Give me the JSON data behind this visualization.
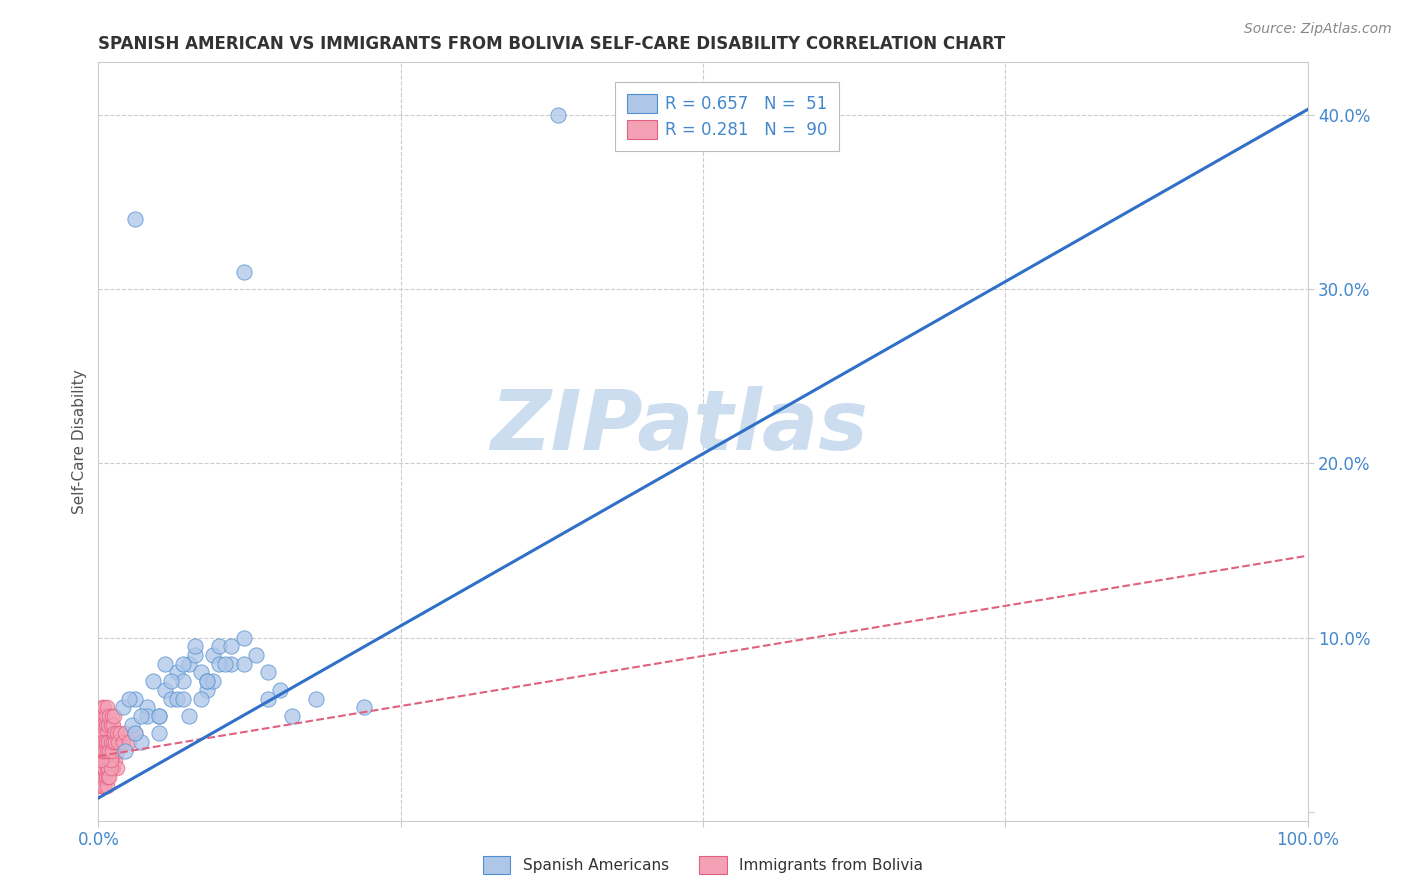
{
  "title": "SPANISH AMERICAN VS IMMIGRANTS FROM BOLIVIA SELF-CARE DISABILITY CORRELATION CHART",
  "source": "Source: ZipAtlas.com",
  "ylabel": "Self-Care Disability",
  "xlim": [
    0,
    1.0
  ],
  "ylim": [
    -0.005,
    0.43
  ],
  "legend_r1": "R = 0.657",
  "legend_n1": "N =  51",
  "legend_r2": "R = 0.281",
  "legend_n2": "N =  90",
  "color_blue": "#aec6e8",
  "color_pink": "#f4a0b5",
  "edge_blue": "#5090d0",
  "edge_pink": "#e06080",
  "line_blue_color": "#3070c8",
  "line_pink_color": "#e06080",
  "watermark": "ZIPatlas",
  "watermark_color": "#ccddf0",
  "background": "#ffffff",
  "grid_color": "#cccccc",
  "tick_color": "#4488cc",
  "title_color": "#333333",
  "source_color": "#888888",
  "ylabel_color": "#555555",
  "blue_slope": 0.395,
  "blue_intercept": 0.008,
  "pink_slope": 0.115,
  "pink_intercept": 0.032,
  "blue_scatter_x": [
    0.022,
    0.028,
    0.035,
    0.04,
    0.05,
    0.055,
    0.06,
    0.065,
    0.07,
    0.075,
    0.08,
    0.085,
    0.09,
    0.095,
    0.1,
    0.11,
    0.12,
    0.13,
    0.14,
    0.15,
    0.02,
    0.03,
    0.04,
    0.05,
    0.06,
    0.07,
    0.08,
    0.09,
    0.1,
    0.11,
    0.025,
    0.035,
    0.045,
    0.055,
    0.065,
    0.075,
    0.085,
    0.095,
    0.105,
    0.03,
    0.05,
    0.07,
    0.09,
    0.12,
    0.14,
    0.16,
    0.18,
    0.22,
    0.03,
    0.12,
    0.38
  ],
  "blue_scatter_y": [
    0.035,
    0.05,
    0.04,
    0.06,
    0.055,
    0.07,
    0.065,
    0.08,
    0.075,
    0.085,
    0.09,
    0.08,
    0.07,
    0.09,
    0.095,
    0.085,
    0.1,
    0.09,
    0.08,
    0.07,
    0.06,
    0.065,
    0.055,
    0.045,
    0.075,
    0.085,
    0.095,
    0.075,
    0.085,
    0.095,
    0.065,
    0.055,
    0.075,
    0.085,
    0.065,
    0.055,
    0.065,
    0.075,
    0.085,
    0.045,
    0.055,
    0.065,
    0.075,
    0.085,
    0.065,
    0.055,
    0.065,
    0.06,
    0.34,
    0.31,
    0.4
  ],
  "pink_scatter_x": [
    0.001,
    0.001,
    0.002,
    0.002,
    0.003,
    0.003,
    0.003,
    0.004,
    0.004,
    0.005,
    0.005,
    0.005,
    0.006,
    0.006,
    0.007,
    0.007,
    0.008,
    0.008,
    0.009,
    0.009,
    0.01,
    0.01,
    0.011,
    0.011,
    0.012,
    0.012,
    0.013,
    0.014,
    0.015,
    0.015,
    0.001,
    0.001,
    0.002,
    0.002,
    0.003,
    0.003,
    0.004,
    0.004,
    0.005,
    0.005,
    0.006,
    0.006,
    0.007,
    0.007,
    0.008,
    0.008,
    0.009,
    0.009,
    0.01,
    0.01,
    0.001,
    0.001,
    0.002,
    0.002,
    0.003,
    0.003,
    0.004,
    0.004,
    0.005,
    0.005,
    0.006,
    0.006,
    0.007,
    0.007,
    0.008,
    0.009,
    0.01,
    0.011,
    0.012,
    0.013,
    0.002,
    0.003,
    0.004,
    0.005,
    0.006,
    0.007,
    0.008,
    0.009,
    0.01,
    0.011,
    0.012,
    0.013,
    0.014,
    0.015,
    0.016,
    0.018,
    0.02,
    0.022,
    0.025,
    0.03
  ],
  "pink_scatter_y": [
    0.02,
    0.03,
    0.025,
    0.035,
    0.03,
    0.04,
    0.02,
    0.035,
    0.025,
    0.03,
    0.04,
    0.02,
    0.035,
    0.025,
    0.03,
    0.04,
    0.025,
    0.035,
    0.03,
    0.04,
    0.025,
    0.035,
    0.03,
    0.04,
    0.035,
    0.025,
    0.04,
    0.03,
    0.025,
    0.035,
    0.015,
    0.02,
    0.015,
    0.025,
    0.02,
    0.03,
    0.02,
    0.025,
    0.015,
    0.025,
    0.02,
    0.03,
    0.025,
    0.015,
    0.02,
    0.025,
    0.03,
    0.02,
    0.025,
    0.03,
    0.04,
    0.05,
    0.045,
    0.055,
    0.05,
    0.06,
    0.055,
    0.05,
    0.06,
    0.045,
    0.05,
    0.055,
    0.045,
    0.06,
    0.05,
    0.055,
    0.05,
    0.055,
    0.05,
    0.055,
    0.03,
    0.035,
    0.04,
    0.035,
    0.04,
    0.035,
    0.04,
    0.035,
    0.04,
    0.035,
    0.04,
    0.045,
    0.04,
    0.045,
    0.04,
    0.045,
    0.04,
    0.045,
    0.04,
    0.045
  ]
}
